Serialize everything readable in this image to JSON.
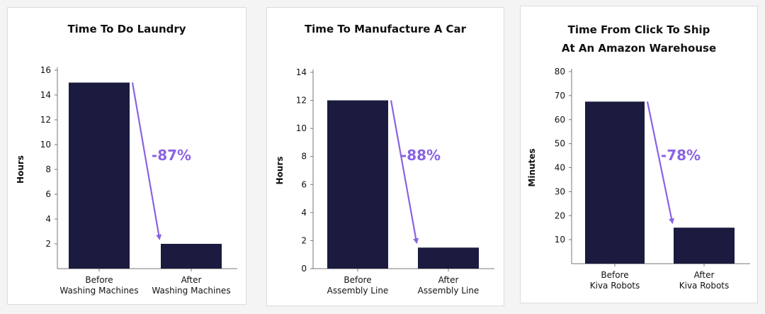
{
  "colors": {
    "bar": "#1b1b3f",
    "accent": "#8a63e3",
    "axis": "#777777",
    "text": "#111111"
  },
  "chart_data": [
    {
      "type": "bar",
      "title": "Time To Do Laundry",
      "ylabel": "Hours",
      "xlabel": "",
      "ylim": [
        0,
        16
      ],
      "yticks": [
        2,
        4,
        6,
        8,
        10,
        12,
        14,
        16
      ],
      "categories": [
        "Before\nWashing Machines",
        "After\nWashing Machines"
      ],
      "values": [
        15,
        2
      ],
      "annotation": "-87%",
      "grid": false
    },
    {
      "type": "bar",
      "title": "Time To Manufacture A Car",
      "ylabel": "Hours",
      "xlabel": "",
      "ylim": [
        0,
        14
      ],
      "yticks": [
        0,
        2,
        4,
        6,
        8,
        10,
        12,
        14
      ],
      "categories": [
        "Before\nAssembly Line",
        "After\nAssembly Line"
      ],
      "values": [
        12,
        1.5
      ],
      "annotation": "-88%",
      "grid": false
    },
    {
      "type": "bar",
      "title": "Time From Click To Ship\nAt An Amazon Warehouse",
      "ylabel": "Minutes",
      "xlabel": "",
      "ylim": [
        0,
        80
      ],
      "yticks": [
        10,
        20,
        30,
        40,
        50,
        60,
        70,
        80
      ],
      "categories": [
        "Before\nKiva Robots",
        "After\nKiva Robots"
      ],
      "values": [
        67.5,
        15
      ],
      "annotation": "-78%",
      "grid": false
    }
  ]
}
